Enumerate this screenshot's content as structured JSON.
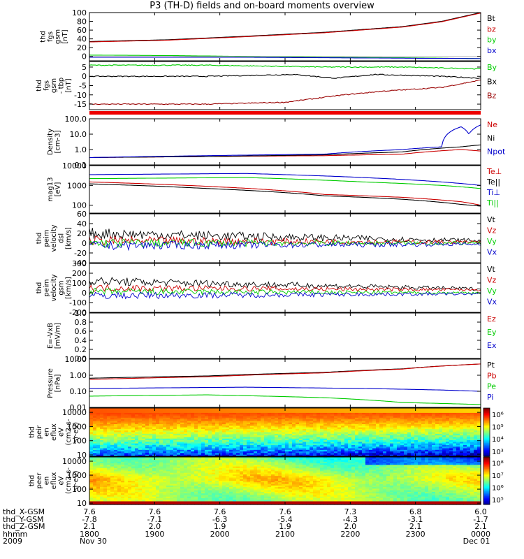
{
  "title": "P3 (TH-D) fields and on-board moments overview",
  "colors": {
    "black": "#000000",
    "red": "#cc0000",
    "green": "#00cc00",
    "blue": "#0000cc",
    "dkred": "#990000"
  },
  "chart_data": [
    {
      "type": "line",
      "ylabel": [
        "thd",
        "fgs",
        "gsm",
        "[nT]"
      ],
      "ylim": [
        -10,
        100
      ],
      "ticks": [
        "100",
        "80",
        "60",
        "40",
        "20",
        "0"
      ],
      "tick_values": [
        100,
        80,
        60,
        40,
        20,
        0
      ],
      "series": [
        {
          "name": "Bt",
          "color": "#000000",
          "values": [
            [
              0,
              34
            ],
            [
              0.2,
              38
            ],
            [
              0.4,
              46
            ],
            [
              0.6,
              55
            ],
            [
              0.8,
              68
            ],
            [
              0.9,
              80
            ],
            [
              1,
              100
            ]
          ]
        },
        {
          "name": "bz",
          "color": "#cc0000",
          "values": [
            [
              0,
              33
            ],
            [
              0.2,
              37
            ],
            [
              0.4,
              45
            ],
            [
              0.6,
              54
            ],
            [
              0.8,
              67
            ],
            [
              0.9,
              79
            ],
            [
              1,
              99
            ]
          ]
        },
        {
          "name": "by",
          "color": "#00cc00",
          "values": [
            [
              0,
              3
            ],
            [
              0.2,
              2
            ],
            [
              0.4,
              0
            ],
            [
              0.6,
              -2
            ],
            [
              0.8,
              -3
            ],
            [
              1,
              -5
            ]
          ]
        },
        {
          "name": "bx",
          "color": "#0000cc",
          "values": [
            [
              0,
              -2
            ],
            [
              0.2,
              -2
            ],
            [
              0.4,
              -2
            ],
            [
              0.6,
              -3
            ],
            [
              0.8,
              -4
            ],
            [
              1,
              -5
            ]
          ]
        }
      ]
    },
    {
      "type": "line",
      "ylabel": [
        "thd",
        "fgs",
        "gsm",
        "- tbp",
        "[nT]"
      ],
      "ylim": [
        -18,
        8
      ],
      "ticks": [
        "5",
        "0",
        "-5",
        "-10",
        "-15"
      ],
      "tick_values": [
        5,
        0,
        -5,
        -10,
        -15
      ],
      "series": [
        {
          "name": "By",
          "color": "#00cc00",
          "values": [
            [
              0,
              6
            ],
            [
              0.3,
              6
            ],
            [
              0.6,
              5
            ],
            [
              0.8,
              5
            ],
            [
              1,
              4
            ]
          ]
        },
        {
          "name": "Bx",
          "color": "#000000",
          "values": [
            [
              0,
              0
            ],
            [
              0.3,
              0
            ],
            [
              0.52,
              1
            ],
            [
              0.63,
              -1
            ],
            [
              0.73,
              1
            ],
            [
              0.9,
              0
            ],
            [
              1,
              -1
            ]
          ]
        },
        {
          "name": "Bz",
          "color": "#990000",
          "values": [
            [
              0,
              -15
            ],
            [
              0.3,
              -15
            ],
            [
              0.5,
              -14
            ],
            [
              0.65,
              -10
            ],
            [
              0.75,
              -8
            ],
            [
              0.9,
              -6
            ],
            [
              1,
              -2
            ]
          ]
        }
      ]
    },
    {
      "type": "line",
      "ylabel": [
        "Density",
        "[cm-3]"
      ],
      "ylim": [
        0.1,
        100
      ],
      "log": true,
      "ticks": [
        "100.0",
        "10.0",
        "1.0",
        "0.1"
      ],
      "tick_values": [
        100,
        10,
        1,
        0.1
      ],
      "series": [
        {
          "name": "Ne",
          "color": "#cc0000",
          "values": [
            [
              0,
              0.3
            ],
            [
              0.3,
              0.35
            ],
            [
              0.6,
              0.4
            ],
            [
              0.8,
              0.5
            ],
            [
              0.95,
              1
            ],
            [
              1,
              0.8
            ]
          ]
        },
        {
          "name": "Ni",
          "color": "#000000",
          "values": [
            [
              0,
              0.3
            ],
            [
              0.3,
              0.35
            ],
            [
              0.6,
              0.45
            ],
            [
              0.8,
              0.7
            ],
            [
              0.95,
              1.5
            ],
            [
              1,
              2
            ]
          ]
        },
        {
          "name": "Npot",
          "color": "#0000cc",
          "values": [
            [
              0,
              0.3
            ],
            [
              0.3,
              0.4
            ],
            [
              0.6,
              0.5
            ],
            [
              0.8,
              1
            ],
            [
              0.9,
              1.5
            ],
            [
              0.95,
              30
            ],
            [
              0.97,
              10
            ],
            [
              1,
              40
            ]
          ]
        }
      ]
    },
    {
      "type": "line",
      "ylabel": [
        "mag13",
        "[eV]"
      ],
      "ylim": [
        40,
        10000
      ],
      "log": true,
      "ticks": [
        "10000",
        "1000",
        "100"
      ],
      "tick_values": [
        10000,
        1000,
        100
      ],
      "series": [
        {
          "name": "Te⊥",
          "color": "#cc0000",
          "values": [
            [
              0,
              1500
            ],
            [
              0.3,
              900
            ],
            [
              0.6,
              350
            ],
            [
              0.8,
              250
            ],
            [
              0.95,
              150
            ],
            [
              1,
              100
            ]
          ]
        },
        {
          "name": "Te||",
          "color": "#000000",
          "values": [
            [
              0,
              1200
            ],
            [
              0.3,
              700
            ],
            [
              0.6,
              300
            ],
            [
              0.8,
              200
            ],
            [
              0.95,
              110
            ],
            [
              1,
              90
            ]
          ]
        },
        {
          "name": "Ti⊥",
          "color": "#0000cc",
          "values": [
            [
              0,
              3500
            ],
            [
              0.4,
              4000
            ],
            [
              0.7,
              2500
            ],
            [
              0.9,
              1500
            ],
            [
              1,
              1000
            ]
          ]
        },
        {
          "name": "Ti||",
          "color": "#00cc00",
          "values": [
            [
              0,
              2200
            ],
            [
              0.4,
              2500
            ],
            [
              0.7,
              1500
            ],
            [
              0.9,
              1000
            ],
            [
              1,
              700
            ]
          ]
        }
      ]
    },
    {
      "type": "line",
      "ylabel": [
        "thd",
        "peim",
        "velocity",
        "dsl",
        "[km/s]"
      ],
      "ylim": [
        -40,
        60
      ],
      "ticks": [
        "60",
        "40",
        "20",
        "0",
        "-20",
        "-40"
      ],
      "tick_values": [
        60,
        40,
        20,
        0,
        -20,
        -40
      ],
      "series": [
        {
          "name": "Vt",
          "color": "#000000",
          "values": [
            [
              0,
              20
            ],
            [
              1,
              5
            ]
          ]
        },
        {
          "name": "Vz",
          "color": "#cc0000",
          "values": [
            [
              0,
              5
            ],
            [
              1,
              2
            ]
          ]
        },
        {
          "name": "Vy",
          "color": "#00cc00",
          "values": [
            [
              0,
              0
            ],
            [
              1,
              0
            ]
          ]
        },
        {
          "name": "Vx",
          "color": "#0000cc",
          "values": [
            [
              0,
              -5
            ],
            [
              1,
              -2
            ]
          ]
        }
      ]
    },
    {
      "type": "line",
      "ylabel": [
        "thd",
        "peim",
        "velocity",
        "gsm",
        "[km/s]"
      ],
      "ylim": [
        -200,
        300
      ],
      "ticks": [
        "300",
        "200",
        "100",
        "0",
        "-100",
        "-200"
      ],
      "tick_values": [
        300,
        200,
        100,
        0,
        -100,
        -200
      ],
      "series": [
        {
          "name": "Vt",
          "color": "#000000",
          "values": [
            [
              0,
              120
            ],
            [
              1,
              40
            ]
          ]
        },
        {
          "name": "Vz",
          "color": "#cc0000",
          "values": [
            [
              0,
              50
            ],
            [
              1,
              30
            ]
          ]
        },
        {
          "name": "Vy",
          "color": "#00cc00",
          "values": [
            [
              0,
              10
            ],
            [
              1,
              0
            ]
          ]
        },
        {
          "name": "Vx",
          "color": "#0000cc",
          "values": [
            [
              0,
              -30
            ],
            [
              1,
              -10
            ]
          ]
        }
      ]
    },
    {
      "type": "line",
      "ylabel": [
        "E=-VxB",
        "[mV/m]"
      ],
      "ylim": [
        0,
        1
      ],
      "ticks": [
        "1.0",
        "0.8",
        "0.6",
        "0.4",
        "0.2",
        "0.0"
      ],
      "tick_values": [
        1,
        0.8,
        0.6,
        0.4,
        0.2,
        0
      ],
      "series": [
        {
          "name": "Ez",
          "color": "#cc0000",
          "values": []
        },
        {
          "name": "Ey",
          "color": "#00cc00",
          "values": []
        },
        {
          "name": "Ex",
          "color": "#0000cc",
          "values": []
        }
      ]
    },
    {
      "type": "line",
      "ylabel": [
        "Pressure",
        "[nPa]"
      ],
      "ylim": [
        0.01,
        10
      ],
      "log": true,
      "ticks": [
        "10.00",
        "1.00",
        "0.10",
        "0.01"
      ],
      "tick_values": [
        10,
        1,
        0.1,
        0.01
      ],
      "series": [
        {
          "name": "Pt",
          "color": "#000000",
          "values": [
            [
              0,
              0.65
            ],
            [
              0.3,
              0.9
            ],
            [
              0.6,
              1.5
            ],
            [
              0.8,
              2.5
            ],
            [
              1,
              5
            ]
          ]
        },
        {
          "name": "Pb",
          "color": "#cc0000",
          "values": [
            [
              0,
              0.55
            ],
            [
              0.3,
              0.8
            ],
            [
              0.6,
              1.4
            ],
            [
              0.8,
              2.4
            ],
            [
              1,
              5
            ]
          ]
        },
        {
          "name": "Pe",
          "color": "#00cc00",
          "values": [
            [
              0,
              0.05
            ],
            [
              0.3,
              0.06
            ],
            [
              0.6,
              0.04
            ],
            [
              0.8,
              0.02
            ],
            [
              1,
              0.015
            ]
          ]
        },
        {
          "name": "Pi",
          "color": "#0000cc",
          "values": [
            [
              0,
              0.15
            ],
            [
              0.4,
              0.18
            ],
            [
              0.7,
              0.15
            ],
            [
              0.9,
              0.12
            ],
            [
              1,
              0.1
            ]
          ]
        }
      ]
    },
    {
      "type": "heatmap",
      "ylabel": [
        "thd",
        "peir",
        "en",
        "eflux",
        "eV",
        "(cm2-s-",
        "sr-eV)"
      ],
      "ylim": [
        8,
        20000
      ],
      "log": true,
      "ticks": [
        "10000",
        "1000",
        "100",
        "10"
      ],
      "tick_values": [
        10000,
        1000,
        100,
        10
      ],
      "colorbar_ticks": [
        "10⁶",
        "10⁵",
        "10⁴",
        "10³"
      ],
      "colorbar_values": [
        6,
        5,
        4,
        3
      ],
      "crange": [
        2.6,
        6.5
      ]
    },
    {
      "type": "heatmap",
      "ylabel": [
        "thd",
        "peer",
        "en",
        "eflux",
        "eV",
        "(cm2-s-",
        "sr-eV)"
      ],
      "ylim": [
        8,
        20000
      ],
      "log": true,
      "ticks": [
        "10000",
        "1000",
        "100",
        "10"
      ],
      "tick_values": [
        10000,
        1000,
        100,
        10
      ],
      "colorbar_ticks": [
        "10⁸",
        "10⁷",
        "10⁶",
        "10⁵"
      ],
      "colorbar_values": [
        8,
        7,
        6,
        5
      ],
      "crange": [
        4.6,
        8.5
      ]
    }
  ],
  "xaxis": {
    "ticks": [
      0,
      0.1667,
      0.3333,
      0.5,
      0.6667,
      0.8333,
      1
    ],
    "rows": [
      {
        "label": "thd_X-GSM",
        "values": [
          "7.6",
          "7.6",
          "7.6",
          "7.6",
          "7.3",
          "6.8",
          "6.0"
        ]
      },
      {
        "label": "thd_Y-GSM",
        "values": [
          "-7.8",
          "-7.1",
          "-6.3",
          "-5.4",
          "-4.3",
          "-3.1",
          "-1.7"
        ]
      },
      {
        "label": "thd_Z-GSM",
        "values": [
          "2.1",
          "2.0",
          "1.9",
          "1.9",
          "2.0",
          "2.1",
          "2.1"
        ]
      },
      {
        "label": "hhmm",
        "values": [
          "1800",
          "1900",
          "2000",
          "2100",
          "2200",
          "2300",
          "0000"
        ]
      },
      {
        "label": "2009",
        "values": [
          "Nov 30",
          "",
          "",
          "",
          "",
          "",
          "Dec 01"
        ]
      }
    ]
  }
}
